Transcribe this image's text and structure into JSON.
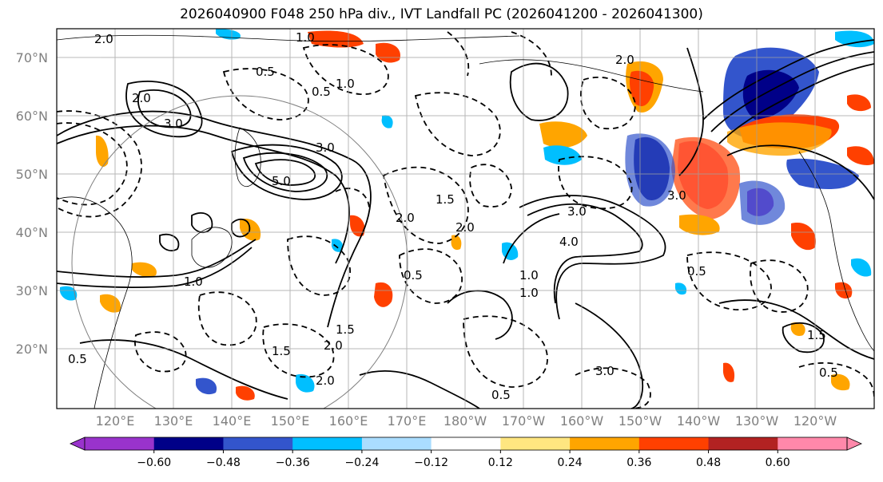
{
  "title": "2026040900 F048 250 hPa div., IVT Landfall PC (2026041200 - 2026041300)",
  "map": {
    "lat_labels": [
      "20°N",
      "30°N",
      "40°N",
      "50°N",
      "60°N",
      "70°N"
    ],
    "lon_labels": [
      "120°E",
      "130°E",
      "140°E",
      "150°E",
      "160°E",
      "170°E",
      "180°W",
      "170°W",
      "160°W",
      "150°W",
      "140°W",
      "130°W",
      "120°W"
    ],
    "extent": {
      "lon_min": 110,
      "lon_max": 250,
      "lat_min": 10,
      "lat_max": 75
    },
    "contour_labels": [
      "2.0",
      "1.0",
      "0.5",
      "3.0",
      "2.0",
      "5.0",
      "3.0",
      "1.0",
      "0.5",
      "2.0",
      "3.0",
      "1.5",
      "4.0",
      "3.0",
      "2.0",
      "0.5",
      "1.0",
      "1.5",
      "2.0",
      "1.5",
      "2.0",
      "0.5",
      "0.5",
      "1.0",
      "3.0",
      "2.0",
      "0.5",
      "1.5",
      "1.0",
      "0.5"
    ]
  },
  "colorbar": {
    "ticks": [
      "−0.60",
      "−0.48",
      "−0.36",
      "−0.24",
      "−0.12",
      "0.12",
      "0.24",
      "0.36",
      "0.48",
      "0.60"
    ],
    "colors": [
      "#9933cc",
      "#000088",
      "#3355cc",
      "#00bfff",
      "#aaddff",
      "#ffffff",
      "#ffe680",
      "#ffa500",
      "#ff4000",
      "#b22222",
      "#ff88aa"
    ],
    "under_color": "#9933cc",
    "over_color": "#ff88aa"
  },
  "colors": {
    "grid": "#a0a0a0",
    "contour": "#000000",
    "axis_text": "#808080"
  }
}
